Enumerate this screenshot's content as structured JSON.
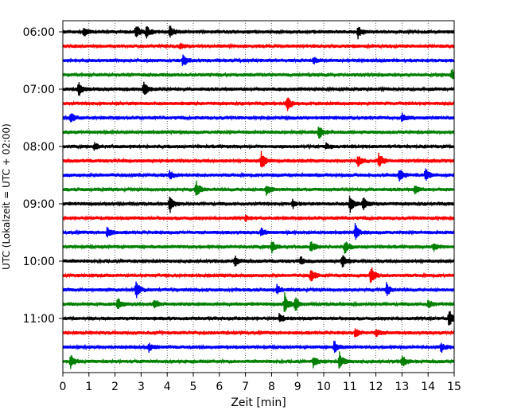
{
  "chart_data": {
    "type": "line",
    "title": "",
    "xlabel": "Zeit  [min]",
    "ylabel": "UTC (Lokalzeit = UTC + 02:00)",
    "xlim": [
      0,
      15
    ],
    "x_ticks": [
      "0",
      "1",
      "2",
      "3",
      "4",
      "5",
      "6",
      "7",
      "8",
      "9",
      "10",
      "11",
      "12",
      "13",
      "14",
      "15"
    ],
    "y_tick_labels": [
      "06:00",
      "07:00",
      "08:00",
      "09:00",
      "10:00",
      "11:00"
    ],
    "y_tick_rows": [
      0,
      4,
      8,
      12,
      16,
      20
    ],
    "grid_x": true,
    "series_colors": [
      "#000000",
      "#ff0000",
      "#0000ff",
      "#008000"
    ],
    "row_interval_minutes": 15,
    "rows": [
      {
        "start": "06:00",
        "color": "#000000",
        "events": [
          {
            "t": 0.8,
            "a": 0.5
          },
          {
            "t": 2.8,
            "a": 0.9
          },
          {
            "t": 3.2,
            "a": 0.7
          },
          {
            "t": 4.1,
            "a": 0.8
          },
          {
            "t": 11.3,
            "a": 0.75
          }
        ]
      },
      {
        "start": "06:15",
        "color": "#ff0000",
        "events": [
          {
            "t": 4.5,
            "a": 0.3
          }
        ]
      },
      {
        "start": "06:30",
        "color": "#0000ff",
        "events": [
          {
            "t": 4.6,
            "a": 0.75
          },
          {
            "t": 9.6,
            "a": 0.4
          }
        ]
      },
      {
        "start": "06:45",
        "color": "#008000",
        "events": [
          {
            "t": 14.9,
            "a": 0.6
          }
        ]
      },
      {
        "start": "07:00",
        "color": "#000000",
        "events": [
          {
            "t": 0.6,
            "a": 1.0
          },
          {
            "t": 3.1,
            "a": 1.0
          }
        ]
      },
      {
        "start": "07:15",
        "color": "#ff0000",
        "events": [
          {
            "t": 8.6,
            "a": 1.0
          }
        ]
      },
      {
        "start": "07:30",
        "color": "#0000ff",
        "events": [
          {
            "t": 0.3,
            "a": 0.6
          },
          {
            "t": 13.0,
            "a": 0.5
          }
        ]
      },
      {
        "start": "07:45",
        "color": "#008000",
        "events": [
          {
            "t": 9.8,
            "a": 0.9
          }
        ]
      },
      {
        "start": "08:00",
        "color": "#000000",
        "events": [
          {
            "t": 1.2,
            "a": 0.45
          },
          {
            "t": 10.1,
            "a": 0.35
          }
        ]
      },
      {
        "start": "08:15",
        "color": "#ff0000",
        "events": [
          {
            "t": 7.6,
            "a": 1.1
          },
          {
            "t": 11.3,
            "a": 0.7
          },
          {
            "t": 12.1,
            "a": 1.0
          }
        ]
      },
      {
        "start": "08:30",
        "color": "#0000ff",
        "events": [
          {
            "t": 4.1,
            "a": 0.5
          },
          {
            "t": 12.9,
            "a": 0.8
          },
          {
            "t": 13.9,
            "a": 0.8
          }
        ]
      },
      {
        "start": "08:45",
        "color": "#008000",
        "events": [
          {
            "t": 5.1,
            "a": 1.0
          },
          {
            "t": 7.8,
            "a": 0.6
          },
          {
            "t": 13.5,
            "a": 0.5
          }
        ]
      },
      {
        "start": "09:00",
        "color": "#000000",
        "events": [
          {
            "t": 4.1,
            "a": 1.1
          },
          {
            "t": 8.8,
            "a": 0.5
          },
          {
            "t": 11.0,
            "a": 1.1
          },
          {
            "t": 11.5,
            "a": 0.7
          }
        ]
      },
      {
        "start": "09:15",
        "color": "#ff0000",
        "events": [
          {
            "t": 7.0,
            "a": 0.3
          }
        ]
      },
      {
        "start": "09:30",
        "color": "#0000ff",
        "events": [
          {
            "t": 1.7,
            "a": 0.6
          },
          {
            "t": 7.6,
            "a": 0.5
          },
          {
            "t": 11.2,
            "a": 0.95
          }
        ]
      },
      {
        "start": "09:45",
        "color": "#008000",
        "events": [
          {
            "t": 8.0,
            "a": 0.8
          },
          {
            "t": 9.5,
            "a": 0.8
          },
          {
            "t": 10.8,
            "a": 0.8
          },
          {
            "t": 14.2,
            "a": 0.5
          }
        ]
      },
      {
        "start": "10:00",
        "color": "#000000",
        "events": [
          {
            "t": 6.6,
            "a": 0.6
          },
          {
            "t": 9.1,
            "a": 0.5
          },
          {
            "t": 10.7,
            "a": 0.8
          }
        ]
      },
      {
        "start": "10:15",
        "color": "#ff0000",
        "events": [
          {
            "t": 9.5,
            "a": 0.9
          },
          {
            "t": 11.8,
            "a": 1.1
          }
        ]
      },
      {
        "start": "10:30",
        "color": "#0000ff",
        "events": [
          {
            "t": 2.8,
            "a": 1.0
          },
          {
            "t": 8.2,
            "a": 0.5
          },
          {
            "t": 12.4,
            "a": 0.8
          }
        ]
      },
      {
        "start": "10:45",
        "color": "#008000",
        "events": [
          {
            "t": 2.1,
            "a": 0.7
          },
          {
            "t": 3.5,
            "a": 0.6
          },
          {
            "t": 8.5,
            "a": 1.3
          },
          {
            "t": 8.9,
            "a": 1.0
          },
          {
            "t": 14.0,
            "a": 0.5
          }
        ]
      },
      {
        "start": "11:00",
        "color": "#000000",
        "events": [
          {
            "t": 8.3,
            "a": 0.5
          },
          {
            "t": 14.8,
            "a": 1.1
          }
        ]
      },
      {
        "start": "11:15",
        "color": "#ff0000",
        "events": [
          {
            "t": 11.2,
            "a": 0.6
          },
          {
            "t": 12.0,
            "a": 0.5
          }
        ]
      },
      {
        "start": "11:30",
        "color": "#0000ff",
        "events": [
          {
            "t": 3.3,
            "a": 0.5
          },
          {
            "t": 10.4,
            "a": 0.7
          },
          {
            "t": 14.5,
            "a": 0.6
          }
        ]
      },
      {
        "start": "11:45",
        "color": "#008000",
        "events": [
          {
            "t": 0.3,
            "a": 0.8
          },
          {
            "t": 9.6,
            "a": 0.6
          },
          {
            "t": 10.6,
            "a": 1.0
          },
          {
            "t": 13.0,
            "a": 0.7
          }
        ]
      }
    ]
  }
}
